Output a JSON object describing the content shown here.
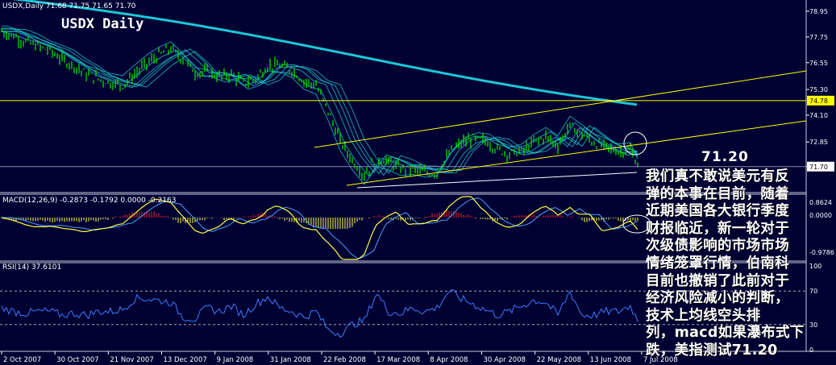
{
  "chart_data": {
    "type": "line",
    "symbol_header": "USDX,Daily  71.68 71.75 71.65 71.70",
    "title": "USDX Daily",
    "x_ticks": [
      "2 Oct 2007",
      "30 Oct 2007",
      "21 Nov 2007",
      "13 Dec 2007",
      "9 Jan 2008",
      "31 Jan 2008",
      "22 Feb 2008",
      "17 Mar 2008",
      "8 Apr 2008",
      "30 Apr 2008",
      "22 May 2008",
      "13 Jun 2008",
      "7 Jul 2008"
    ],
    "y_ticks": [
      "78.95",
      "77.75",
      "76.55",
      "75.30",
      "74.10",
      "72.85",
      "71.70"
    ],
    "price_range": [
      70.6,
      79.4
    ],
    "price_markers": [
      "74.78",
      "71.70"
    ],
    "horizontal_line": 74.78,
    "support_line": 71.7,
    "price_note": "71.20",
    "panels": {
      "macd": {
        "label": "MACD(12,26,9) -0.2873 -0.1792 0.0000 -0.2163",
        "y_ticks": [
          "0.8624",
          "0.0000",
          "-0.9786"
        ]
      },
      "rsi": {
        "label": "RSI(14) 37.6101",
        "y_ticks": [
          "100",
          "70",
          "30",
          "0"
        ]
      }
    },
    "series": [
      {
        "x": [
          0,
          15,
          30,
          45,
          60,
          75,
          90,
          105,
          120,
          135,
          150,
          165,
          180,
          195,
          210,
          225,
          240,
          255,
          270,
          285,
          300,
          315,
          330,
          345,
          360,
          375,
          390,
          405,
          420,
          435,
          450,
          465,
          480,
          495,
          510,
          525,
          540,
          555,
          570,
          585,
          600,
          615,
          630,
          645,
          660,
          675,
          690,
          705,
          720,
          735,
          750,
          765,
          780,
          790
        ],
        "values": [
          78.0,
          77.8,
          77.5,
          77.3,
          77.1,
          76.7,
          76.4,
          76.0,
          75.8,
          75.6,
          75.5,
          76.0,
          76.5,
          76.9,
          77.2,
          76.7,
          76.1,
          76.1,
          75.9,
          76.0,
          75.6,
          75.8,
          76.4,
          76.4,
          76.2,
          75.7,
          75.5,
          74.3,
          72.9,
          72.0,
          71.3,
          72.1,
          71.9,
          71.6,
          71.6,
          71.4,
          71.4,
          72.3,
          72.8,
          73.0,
          72.9,
          72.5,
          72.3,
          72.4,
          72.8,
          73.1,
          72.7,
          73.6,
          73.2,
          72.8,
          72.6,
          72.4,
          72.5,
          71.7
        ]
      }
    ]
  },
  "annotation": {
    "lines": [
      "我们真不敢说美元有反",
      "弹的本事在目前，随着",
      "近期美国各大银行季度",
      "财报临近，新一轮对于",
      "次级债影响的市场市场",
      "情绪笼罩行情，伯南科",
      "目前也撤销了此前对于",
      "经济风险减小的判断，",
      "技术上均线空头排",
      "列，macd如果瀑布式下",
      "跌，美指测试71.20"
    ]
  },
  "colors": {
    "background": "#000033",
    "candles": "#00e000",
    "ma": "#22cccc",
    "ma_slow": "#1ec8d6",
    "trend": "#ffff00",
    "macd_pos": "#ff2020",
    "macd_neg": "#ffff44",
    "rsi": "#3b7dff",
    "text": "#ffffff"
  }
}
